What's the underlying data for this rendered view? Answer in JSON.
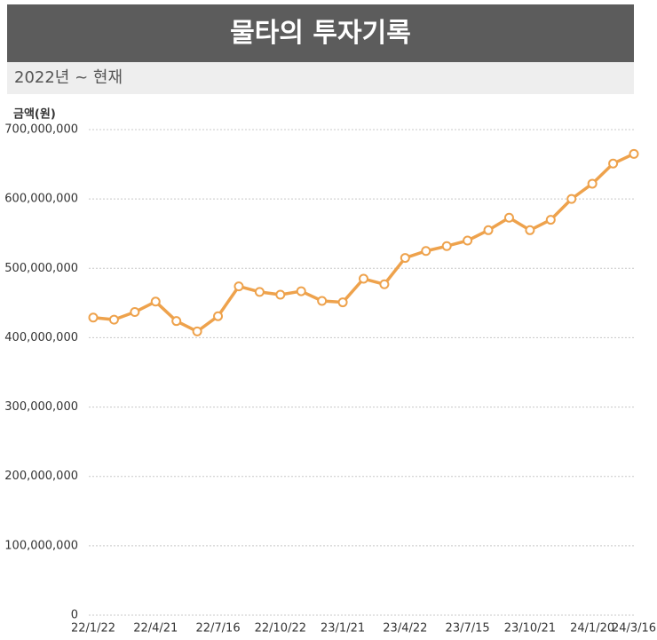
{
  "chart_data": {
    "type": "line",
    "title": "물타의 투자기록",
    "subtitle": "2022년 ~ 현재",
    "y_label": "금액(원)",
    "categories": [
      "22/1/22",
      null,
      null,
      "22/4/21",
      null,
      null,
      "22/7/16",
      null,
      null,
      "22/10/22",
      null,
      null,
      "23/1/21",
      null,
      null,
      "23/4/22",
      null,
      null,
      "23/7/15",
      null,
      null,
      "23/10/21",
      null,
      null,
      "24/1/20",
      null,
      "24/3/16"
    ],
    "series": [
      {
        "color": "#eea24c",
        "values": [
          429000000,
          426000000,
          437000000,
          452000000,
          424000000,
          409000000,
          431000000,
          474000000,
          466000000,
          462000000,
          467000000,
          453000000,
          451000000,
          485000000,
          477000000,
          515000000,
          525000000,
          532000000,
          540000000,
          555000000,
          573000000,
          555000000,
          570000000,
          600000000,
          622000000,
          651000000,
          665000000
        ]
      }
    ],
    "ylim": [
      0,
      700000000
    ],
    "yticks": [
      0,
      {
        "value": 100000000,
        "label": "100,000,000"
      },
      {
        "value": 200000000,
        "label": "200,000,000"
      },
      {
        "value": 300000000,
        "label": "300,000,000"
      },
      {
        "value": 400000000,
        "label": "400,000,000"
      },
      {
        "value": 500000000,
        "label": "500,000,000"
      },
      {
        "value": 600000000,
        "label": "600,000,000"
      },
      {
        "value": 700000000,
        "label": "700,000,000"
      }
    ],
    "grid": true
  }
}
